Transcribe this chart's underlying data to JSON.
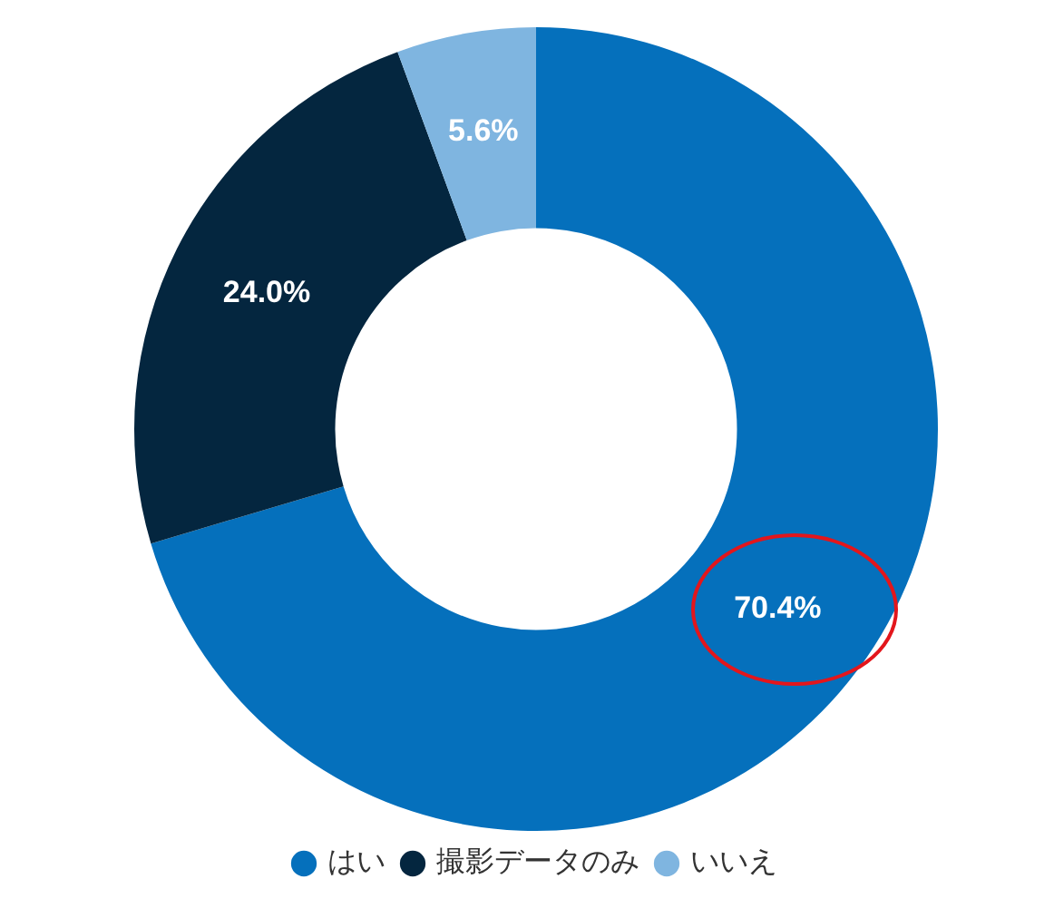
{
  "chart_data": {
    "type": "donut",
    "categories": [
      "はい",
      "撮影データのみ",
      "いいえ"
    ],
    "values": [
      70.4,
      24.0,
      5.6
    ],
    "colors": [
      "#0570bc",
      "#04263f",
      "#7fb5e0"
    ],
    "value_labels": [
      "70.4%",
      "24.0%",
      "5.6%"
    ],
    "legend": "bottom"
  }
}
